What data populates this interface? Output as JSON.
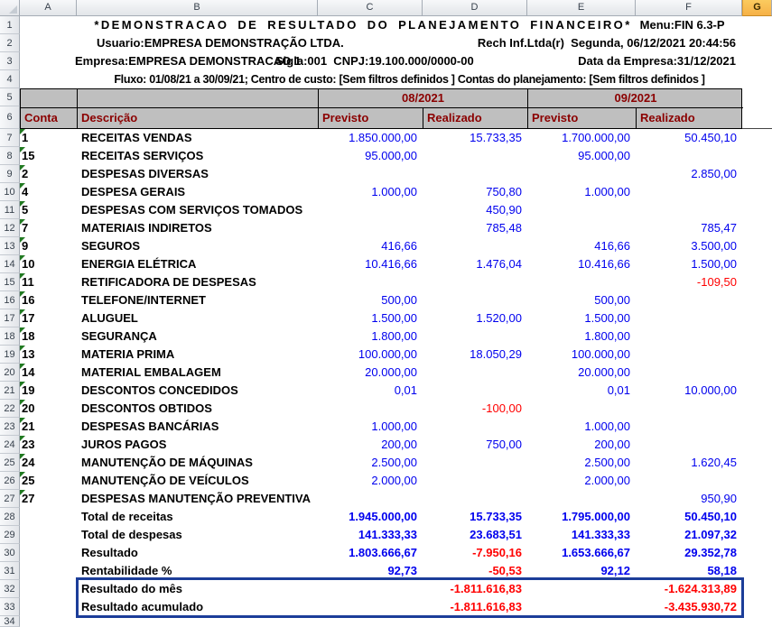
{
  "columns": [
    {
      "letter": "A",
      "selected": false
    },
    {
      "letter": "B",
      "selected": false
    },
    {
      "letter": "C",
      "selected": false
    },
    {
      "letter": "D",
      "selected": false
    },
    {
      "letter": "E",
      "selected": false
    },
    {
      "letter": "F",
      "selected": false
    },
    {
      "letter": "G",
      "selected": true
    }
  ],
  "row_numbers": {
    "from": 1,
    "to": 34
  },
  "header_info": {
    "title_main": "*DEMONSTRACAO DE RESULTADO DO PLANEJAMENTO FINANCEIRO*",
    "title_menu": "Menu:FIN 6.3-P",
    "usuario": "Usuario:EMPRESA DEMONSTRAÇÃO LTDA.",
    "rech": "Rech Inf.Ltda(r)  Segunda, 06/12/2021 20:44:56",
    "empresa": "Empresa:EMPRESA DEMONSTRACAO 1",
    "sigla_cnpj": "Sigla:001  CNPJ:19.100.000/0000-00",
    "data_empresa": "Data da Empresa:31/12/2021",
    "fluxo": "Fluxo: 01/08/21 a 30/09/21; Centro de custo: [Sem filtros definidos ] Contas do planejamento: [Sem filtros definidos ]"
  },
  "table": {
    "month_groups": [
      "08/2021",
      "09/2021"
    ],
    "col_headers": {
      "conta": "Conta",
      "descricao": "Descrição",
      "previsto": "Previsto",
      "realizado": "Realizado"
    },
    "rows": [
      {
        "row": 7,
        "conta": "1",
        "flag": true,
        "bold": false,
        "desc": "RECEITAS VENDAS",
        "vals": [
          "1.850.000,00",
          "15.733,35",
          "1.700.000,00",
          "50.450,10"
        ]
      },
      {
        "row": 8,
        "conta": "15",
        "flag": true,
        "bold": false,
        "desc": "RECEITAS SERVIÇOS",
        "vals": [
          "95.000,00",
          "",
          "95.000,00",
          ""
        ]
      },
      {
        "row": 9,
        "conta": "2",
        "flag": true,
        "bold": false,
        "desc": "DESPESAS DIVERSAS",
        "vals": [
          "",
          "",
          "",
          "2.850,00"
        ]
      },
      {
        "row": 10,
        "conta": "4",
        "flag": true,
        "bold": false,
        "desc": "DESPESA GERAIS",
        "vals": [
          "1.000,00",
          "750,80",
          "1.000,00",
          ""
        ]
      },
      {
        "row": 11,
        "conta": "5",
        "flag": true,
        "bold": false,
        "desc": "DESPESAS COM SERVIÇOS TOMADOS",
        "vals": [
          "",
          "450,90",
          "",
          ""
        ]
      },
      {
        "row": 12,
        "conta": "7",
        "flag": true,
        "bold": false,
        "desc": "MATERIAIS INDIRETOS",
        "vals": [
          "",
          "785,48",
          "",
          "785,47"
        ]
      },
      {
        "row": 13,
        "conta": "9",
        "flag": true,
        "bold": false,
        "desc": "SEGUROS",
        "vals": [
          "416,66",
          "",
          "416,66",
          "3.500,00"
        ]
      },
      {
        "row": 14,
        "conta": "10",
        "flag": true,
        "bold": false,
        "desc": "ENERGIA ELÉTRICA",
        "vals": [
          "10.416,66",
          "1.476,04",
          "10.416,66",
          "1.500,00"
        ]
      },
      {
        "row": 15,
        "conta": "11",
        "flag": true,
        "bold": false,
        "desc": "RETIFICADORA DE DESPESAS",
        "vals": [
          "",
          "",
          "",
          "-109,50"
        ]
      },
      {
        "row": 16,
        "conta": "16",
        "flag": true,
        "bold": false,
        "desc": "TELEFONE/INTERNET",
        "vals": [
          "500,00",
          "",
          "500,00",
          ""
        ]
      },
      {
        "row": 17,
        "conta": "17",
        "flag": true,
        "bold": false,
        "desc": "ALUGUEL",
        "vals": [
          "1.500,00",
          "1.520,00",
          "1.500,00",
          ""
        ]
      },
      {
        "row": 18,
        "conta": "18",
        "flag": true,
        "bold": false,
        "desc": "SEGURANÇA",
        "vals": [
          "1.800,00",
          "",
          "1.800,00",
          ""
        ]
      },
      {
        "row": 19,
        "conta": "13",
        "flag": true,
        "bold": false,
        "desc": "MATERIA PRIMA",
        "vals": [
          "100.000,00",
          "18.050,29",
          "100.000,00",
          ""
        ]
      },
      {
        "row": 20,
        "conta": "14",
        "flag": true,
        "bold": false,
        "desc": "MATERIAL EMBALAGEM",
        "vals": [
          "20.000,00",
          "",
          "20.000,00",
          ""
        ]
      },
      {
        "row": 21,
        "conta": "19",
        "flag": true,
        "bold": false,
        "desc": "DESCONTOS CONCEDIDOS",
        "vals": [
          "0,01",
          "",
          "0,01",
          "10.000,00"
        ]
      },
      {
        "row": 22,
        "conta": "20",
        "flag": true,
        "bold": false,
        "desc": "DESCONTOS OBTIDOS",
        "vals": [
          "",
          "-100,00",
          "",
          ""
        ]
      },
      {
        "row": 23,
        "conta": "21",
        "flag": true,
        "bold": false,
        "desc": "DESPESAS BANCÁRIAS",
        "vals": [
          "1.000,00",
          "",
          "1.000,00",
          ""
        ]
      },
      {
        "row": 24,
        "conta": "23",
        "flag": true,
        "bold": false,
        "desc": "JUROS PAGOS",
        "vals": [
          "200,00",
          "750,00",
          "200,00",
          ""
        ]
      },
      {
        "row": 25,
        "conta": "24",
        "flag": true,
        "bold": false,
        "desc": "MANUTENÇÃO DE MÁQUINAS",
        "vals": [
          "2.500,00",
          "",
          "2.500,00",
          "1.620,45"
        ]
      },
      {
        "row": 26,
        "conta": "25",
        "flag": true,
        "bold": false,
        "desc": "MANUTENÇÃO DE VEÍCULOS",
        "vals": [
          "2.000,00",
          "",
          "2.000,00",
          ""
        ]
      },
      {
        "row": 27,
        "conta": "27",
        "flag": true,
        "bold": false,
        "desc": "DESPESAS MANUTENÇÃO PREVENTIVA",
        "vals": [
          "",
          "",
          "",
          "950,90"
        ]
      },
      {
        "row": 28,
        "conta": "",
        "flag": false,
        "bold": true,
        "desc": "Total de receitas",
        "vals": [
          "1.945.000,00",
          "15.733,35",
          "1.795.000,00",
          "50.450,10"
        ]
      },
      {
        "row": 29,
        "conta": "",
        "flag": false,
        "bold": true,
        "desc": "Total de despesas",
        "vals": [
          "141.333,33",
          "23.683,51",
          "141.333,33",
          "21.097,32"
        ]
      },
      {
        "row": 30,
        "conta": "",
        "flag": false,
        "bold": true,
        "desc": "Resultado",
        "vals": [
          "1.803.666,67",
          "-7.950,16",
          "1.653.666,67",
          "29.352,78"
        ]
      },
      {
        "row": 31,
        "conta": "",
        "flag": false,
        "bold": true,
        "desc": "Rentabilidade %",
        "vals": [
          "92,73",
          "-50,53",
          "92,12",
          "58,18"
        ]
      },
      {
        "row": 32,
        "conta": "",
        "flag": false,
        "bold": true,
        "desc": "Resultado do mês",
        "vals": [
          "",
          "-1.811.616,83",
          "",
          "-1.624.313,89"
        ]
      },
      {
        "row": 33,
        "conta": "",
        "flag": false,
        "bold": true,
        "desc": "Resultado acumulado",
        "vals": [
          "",
          "-1.811.616,83",
          "",
          "-3.435.930,72"
        ]
      }
    ]
  },
  "colors": {
    "value_blue": "#0000EE",
    "value_red": "#FF0000",
    "header_maroon": "#8B0000",
    "header_gray": "#BFBFBF",
    "summary_box_blue": "#1C3D99",
    "flag_green": "#217A21",
    "selected_column_gold": "#FBCB5F"
  }
}
